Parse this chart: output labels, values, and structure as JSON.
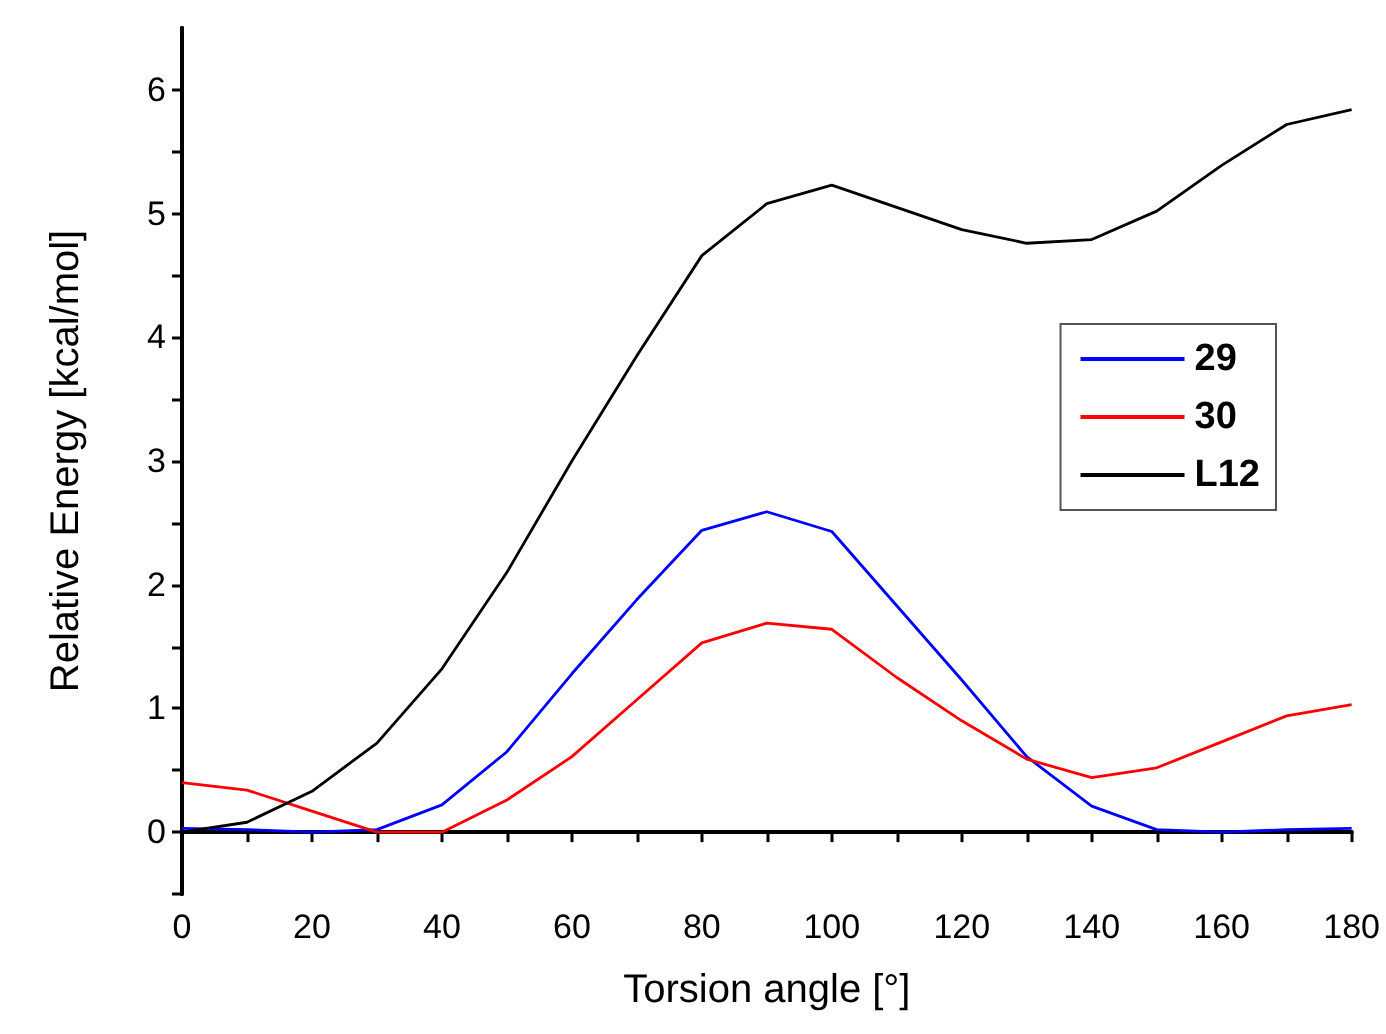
{
  "chart_data": {
    "type": "line",
    "xlabel": "Torsion angle [°]",
    "ylabel": "Relative Energy [kcal/mol]",
    "x": [
      0,
      10,
      20,
      30,
      40,
      50,
      60,
      70,
      80,
      90,
      100,
      110,
      120,
      130,
      140,
      150,
      160,
      170,
      180
    ],
    "series": [
      {
        "name": "29",
        "color": "#0000ff",
        "values": [
          0.03,
          0.02,
          0,
          0.02,
          0.22,
          0.65,
          1.28,
          1.88,
          2.44,
          2.59,
          2.43,
          1.83,
          1.23,
          0.61,
          0.21,
          0.02,
          0,
          0.02,
          0.03
        ]
      },
      {
        "name": "30",
        "color": "#ff0000",
        "values": [
          0.4,
          0.34,
          0.17,
          0,
          0,
          0.26,
          0.61,
          1.07,
          1.53,
          1.69,
          1.64,
          1.25,
          0.9,
          0.59,
          0.44,
          0.52,
          0.73,
          0.94,
          1.03
        ]
      },
      {
        "name": "L12",
        "color": "#000000",
        "values": [
          0,
          0.08,
          0.33,
          0.72,
          1.32,
          2.1,
          3.0,
          3.85,
          4.66,
          5.08,
          5.23,
          5.05,
          4.87,
          4.76,
          4.79,
          5.02,
          5.39,
          5.72,
          5.84
        ]
      }
    ],
    "xlim": [
      0,
      180
    ],
    "xticks": [
      0,
      {
        "value": 10,
        "label": null
      },
      20,
      {
        "value": 30,
        "label": null
      },
      40,
      {
        "value": 50,
        "label": null
      },
      60,
      {
        "value": 70,
        "label": null
      },
      80,
      {
        "value": 90,
        "label": null
      },
      100,
      {
        "value": 110,
        "label": null
      },
      120,
      {
        "value": 130,
        "label": null
      },
      140,
      {
        "value": 150,
        "label": null
      },
      160,
      {
        "value": 170,
        "label": null
      },
      180
    ],
    "ylim": [
      -0.5,
      6.5
    ],
    "yticks": [
      {
        "value": -0.5,
        "label": null
      },
      0,
      {
        "value": 0.5,
        "label": null
      },
      1,
      {
        "value": 1.5,
        "label": null
      },
      2,
      {
        "value": 2.5,
        "label": null
      },
      3,
      {
        "value": 3.5,
        "label": null
      },
      4,
      {
        "value": 4.5,
        "label": null
      },
      5,
      {
        "value": 5.5,
        "label": null
      },
      6
    ],
    "grid": false,
    "legend": "right",
    "marker": "none",
    "line_style": "solid"
  }
}
